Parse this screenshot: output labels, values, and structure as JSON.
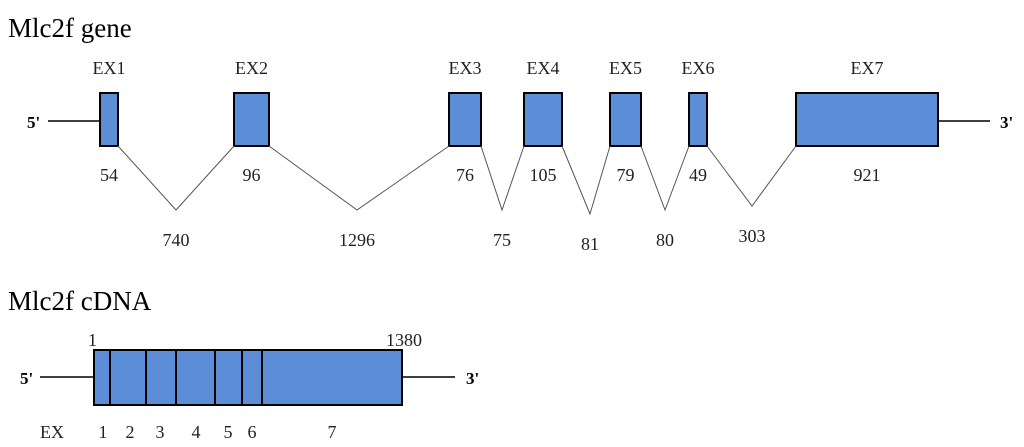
{
  "gene": {
    "title": "Mlc2f gene",
    "five": "5'",
    "three": "3'",
    "exons": [
      {
        "label": "EX1",
        "length": 54
      },
      {
        "label": "EX2",
        "length": 96
      },
      {
        "label": "EX3",
        "length": 76
      },
      {
        "label": "EX4",
        "length": 105
      },
      {
        "label": "EX5",
        "length": 79
      },
      {
        "label": "EX6",
        "length": 49
      },
      {
        "label": "EX7",
        "length": 921
      }
    ],
    "introns": [
      740,
      1296,
      75,
      81,
      80,
      303
    ]
  },
  "cdna": {
    "title": "Mlc2f cDNA",
    "five": "5'",
    "three": "3'",
    "start": 1,
    "end": 1380,
    "ex_label": "EX",
    "exons": [
      1,
      2,
      3,
      4,
      5,
      6,
      7
    ]
  }
}
